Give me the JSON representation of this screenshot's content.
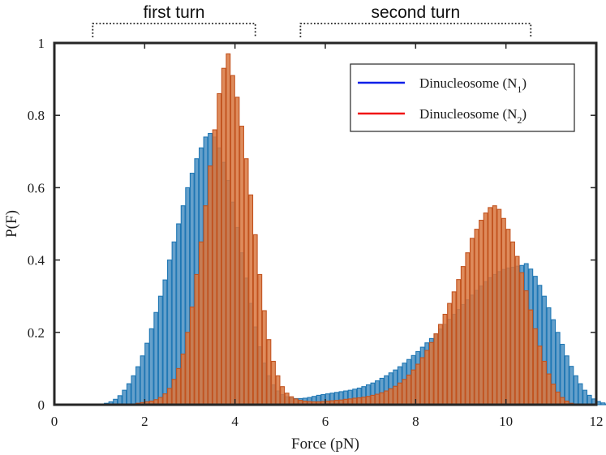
{
  "chart_data": {
    "type": "bar",
    "title": "",
    "xlabel": "Force (pN)",
    "ylabel": "P(F)",
    "xlim": [
      0,
      12
    ],
    "ylim": [
      0,
      1
    ],
    "xticks": [
      "0",
      "2",
      "4",
      "6",
      "8",
      "10",
      "12"
    ],
    "yticks": [
      "0",
      "0.2",
      "0.4",
      "0.6",
      "0.8",
      "1"
    ],
    "grid": false,
    "legend_position": "top-right",
    "bin_width": 0.1,
    "annotations": [
      {
        "label": "first turn",
        "range": [
          0.85,
          4.45
        ]
      },
      {
        "label": "second turn",
        "range": [
          5.45,
          10.55
        ]
      }
    ],
    "series": [
      {
        "name_main": "Dinucleosome (N",
        "name_sub": "1",
        "name_end": ")",
        "color": "#1f77b4",
        "fill": "#4a8fc2",
        "legend_color": "#0b1fe8",
        "x_start": 1.0,
        "values": [
          0.002,
          0.004,
          0.008,
          0.015,
          0.025,
          0.04,
          0.058,
          0.08,
          0.105,
          0.135,
          0.17,
          0.21,
          0.255,
          0.3,
          0.345,
          0.4,
          0.45,
          0.5,
          0.55,
          0.6,
          0.64,
          0.68,
          0.71,
          0.74,
          0.75,
          0.74,
          0.71,
          0.67,
          0.62,
          0.56,
          0.49,
          0.42,
          0.35,
          0.28,
          0.215,
          0.16,
          0.115,
          0.08,
          0.055,
          0.038,
          0.028,
          0.022,
          0.018,
          0.017,
          0.017,
          0.018,
          0.02,
          0.023,
          0.026,
          0.028,
          0.03,
          0.032,
          0.034,
          0.036,
          0.038,
          0.04,
          0.043,
          0.046,
          0.05,
          0.055,
          0.06,
          0.066,
          0.073,
          0.08,
          0.088,
          0.096,
          0.105,
          0.115,
          0.125,
          0.136,
          0.147,
          0.159,
          0.171,
          0.183,
          0.196,
          0.209,
          0.222,
          0.236,
          0.25,
          0.263,
          0.277,
          0.29,
          0.303,
          0.316,
          0.328,
          0.34,
          0.351,
          0.36,
          0.368,
          0.374,
          0.378,
          0.38,
          0.383,
          0.385,
          0.39,
          0.375,
          0.355,
          0.33,
          0.3,
          0.268,
          0.235,
          0.2,
          0.167,
          0.135,
          0.106,
          0.08,
          0.058,
          0.04,
          0.026,
          0.016,
          0.009,
          0.005,
          0.002,
          0.001
        ]
      },
      {
        "name_main": "Dinucleosome (N",
        "name_sub": "2",
        "name_end": ")",
        "color": "#c2531f",
        "fill": "#d8773f",
        "legend_color": "#f01010",
        "x_start": 1.6,
        "values": [
          0.001,
          0.002,
          0.004,
          0.006,
          0.008,
          0.01,
          0.014,
          0.02,
          0.03,
          0.045,
          0.07,
          0.1,
          0.14,
          0.2,
          0.27,
          0.36,
          0.45,
          0.55,
          0.66,
          0.76,
          0.86,
          0.93,
          0.97,
          0.91,
          0.85,
          0.77,
          0.68,
          0.58,
          0.47,
          0.36,
          0.26,
          0.18,
          0.12,
          0.08,
          0.05,
          0.032,
          0.022,
          0.016,
          0.012,
          0.01,
          0.009,
          0.008,
          0.008,
          0.009,
          0.01,
          0.011,
          0.012,
          0.013,
          0.015,
          0.016,
          0.018,
          0.019,
          0.021,
          0.023,
          0.026,
          0.029,
          0.033,
          0.038,
          0.044,
          0.051,
          0.06,
          0.07,
          0.082,
          0.096,
          0.112,
          0.13,
          0.15,
          0.172,
          0.196,
          0.222,
          0.25,
          0.28,
          0.312,
          0.346,
          0.382,
          0.42,
          0.46,
          0.485,
          0.51,
          0.53,
          0.545,
          0.55,
          0.54,
          0.515,
          0.485,
          0.45,
          0.41,
          0.365,
          0.315,
          0.262,
          0.21,
          0.162,
          0.12,
          0.085,
          0.057,
          0.035,
          0.02,
          0.01,
          0.004
        ]
      }
    ]
  }
}
